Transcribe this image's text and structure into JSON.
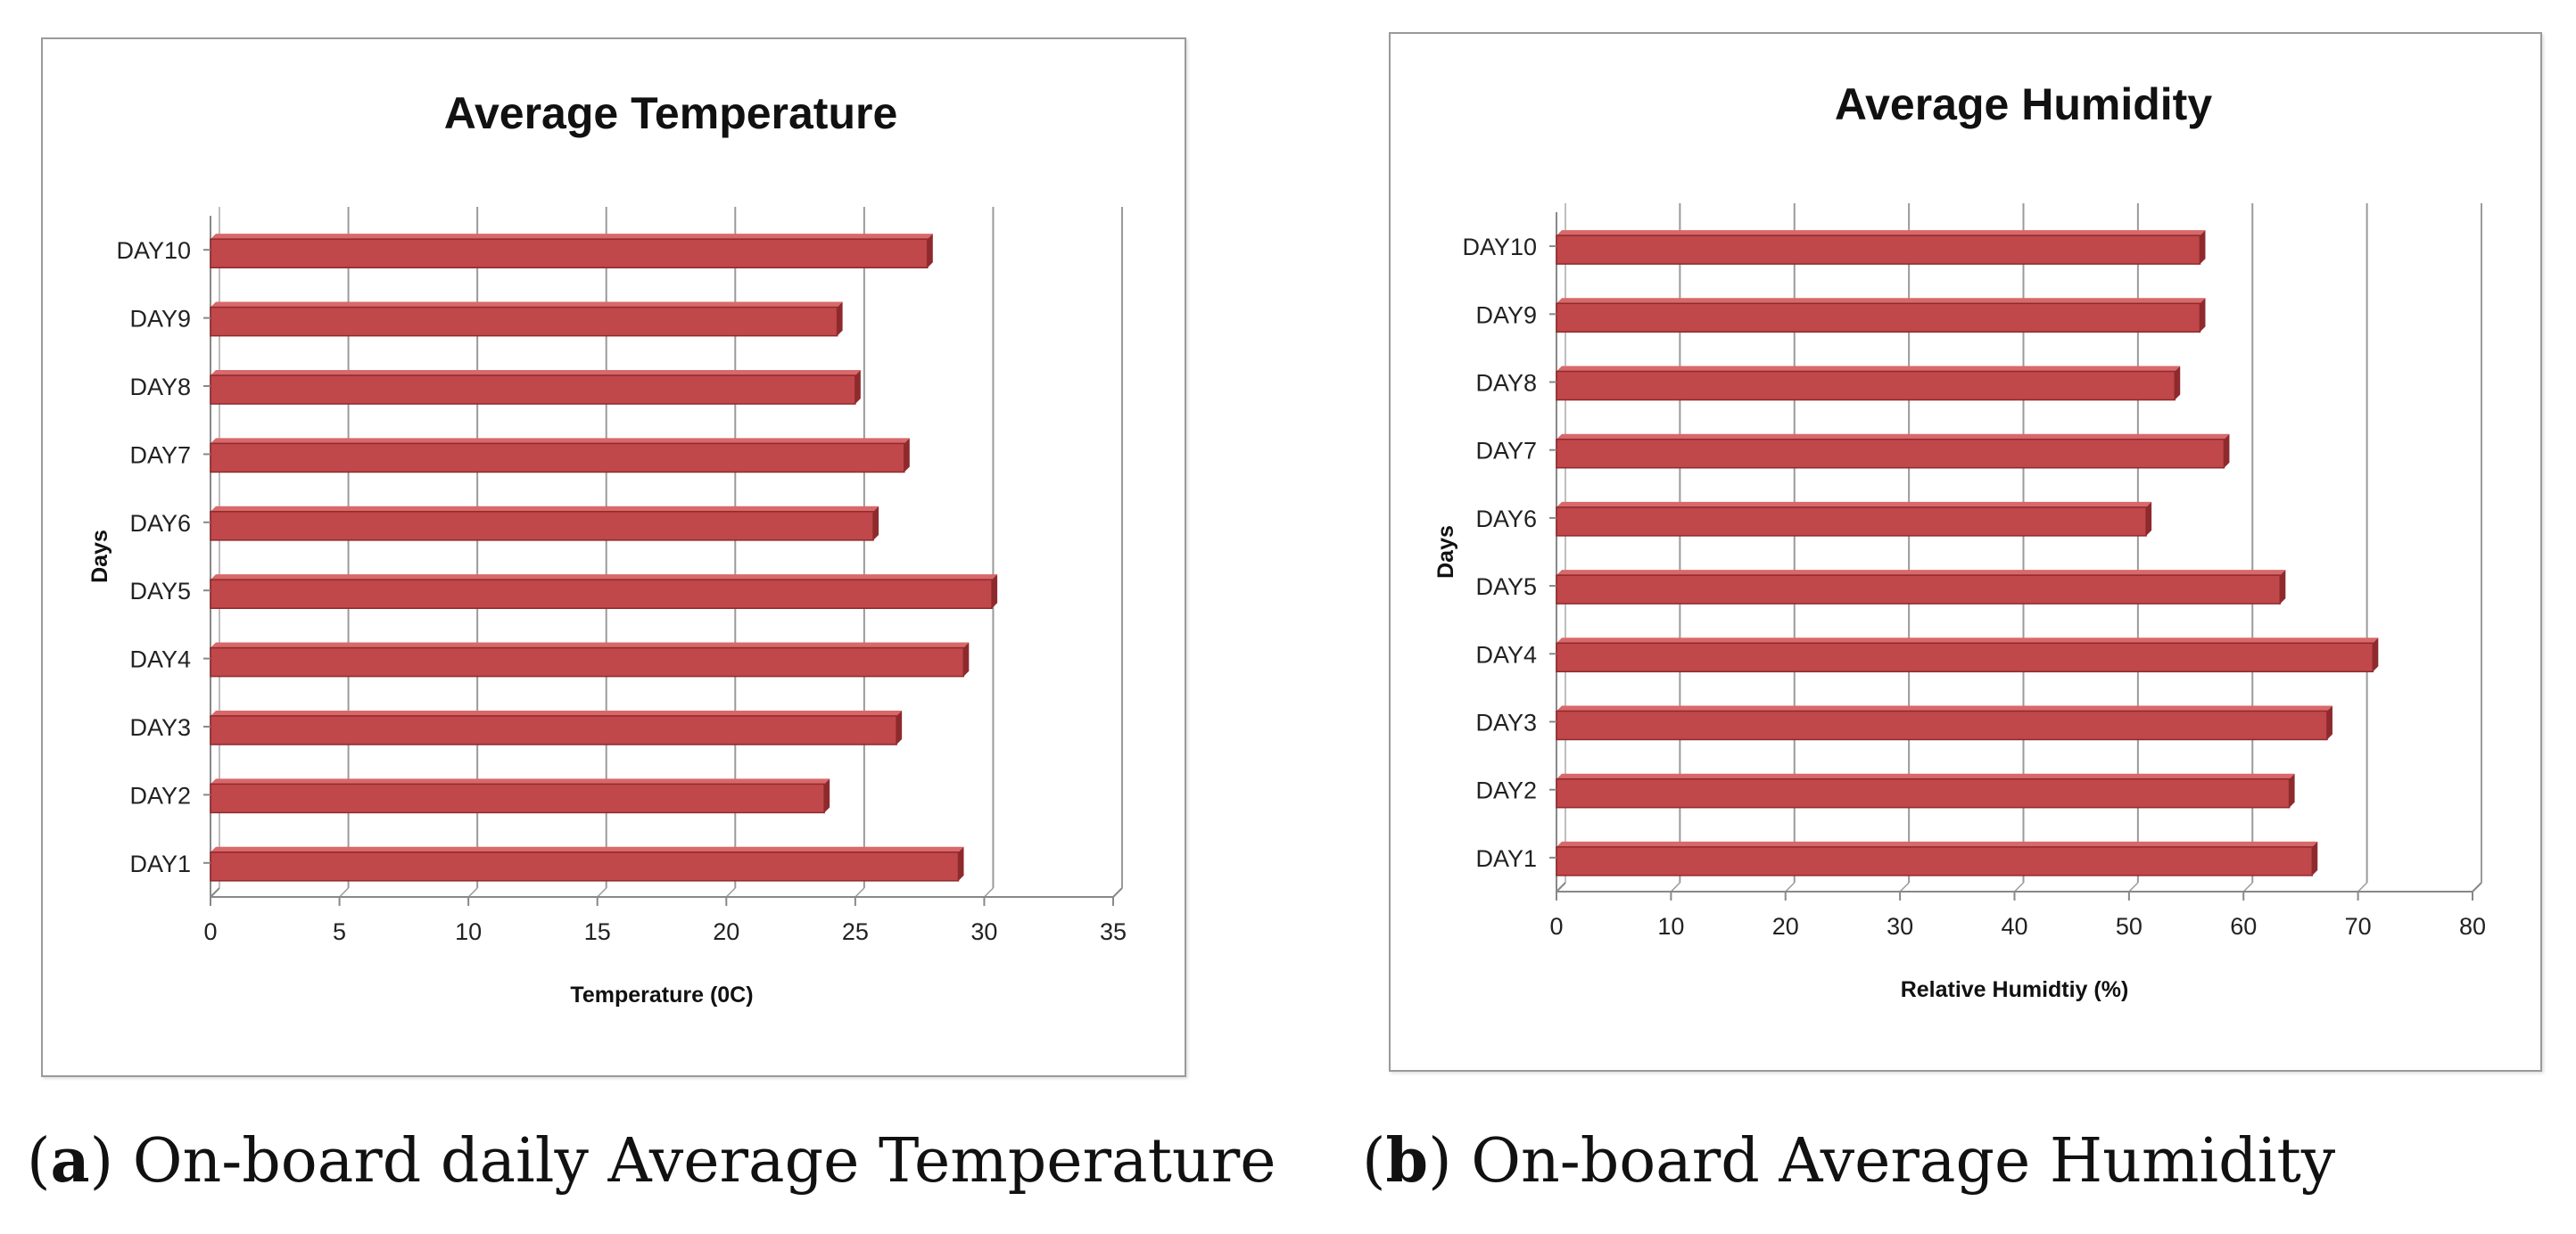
{
  "figures": [
    {
      "caption_letter": "a",
      "caption_text": "On-board daily Average Temperature"
    },
    {
      "caption_letter": "b",
      "caption_text": "On-board Average Humidity"
    }
  ],
  "colors": {
    "bar": "#c0474a",
    "bar_top": "#d9686a",
    "bar_edge": "#8e2a2d",
    "grid": "#9a9a9a"
  },
  "chart_data": [
    {
      "type": "bar",
      "orientation": "horizontal",
      "title": "Average Temperature",
      "xlabel": "Temperature (0C)",
      "ylabel": "Days",
      "categories": [
        "DAY1",
        "DAY2",
        "DAY3",
        "DAY4",
        "DAY5",
        "DAY6",
        "DAY7",
        "DAY8",
        "DAY9",
        "DAY10"
      ],
      "values": [
        29,
        23.8,
        26.6,
        29.2,
        30.3,
        25.7,
        26.9,
        25,
        24.3,
        27.8
      ],
      "xlim": [
        0,
        35
      ],
      "xticks": [
        0,
        5,
        10,
        15,
        20,
        25,
        30,
        35
      ],
      "grid": true,
      "legend": "none"
    },
    {
      "type": "bar",
      "orientation": "horizontal",
      "title": "Average Humidity",
      "xlabel": "Relative Humidtiy (%)",
      "ylabel": "Days",
      "categories": [
        "DAY1",
        "DAY2",
        "DAY3",
        "DAY4",
        "DAY5",
        "DAY6",
        "DAY7",
        "DAY8",
        "DAY9",
        "DAY10"
      ],
      "values": [
        66,
        64,
        67.3,
        71.3,
        63.2,
        51.5,
        58.3,
        54,
        56.2,
        56.2
      ],
      "xlim": [
        0,
        80
      ],
      "xticks": [
        0,
        10,
        20,
        30,
        40,
        50,
        60,
        70,
        80
      ],
      "grid": true,
      "legend": "none"
    }
  ]
}
